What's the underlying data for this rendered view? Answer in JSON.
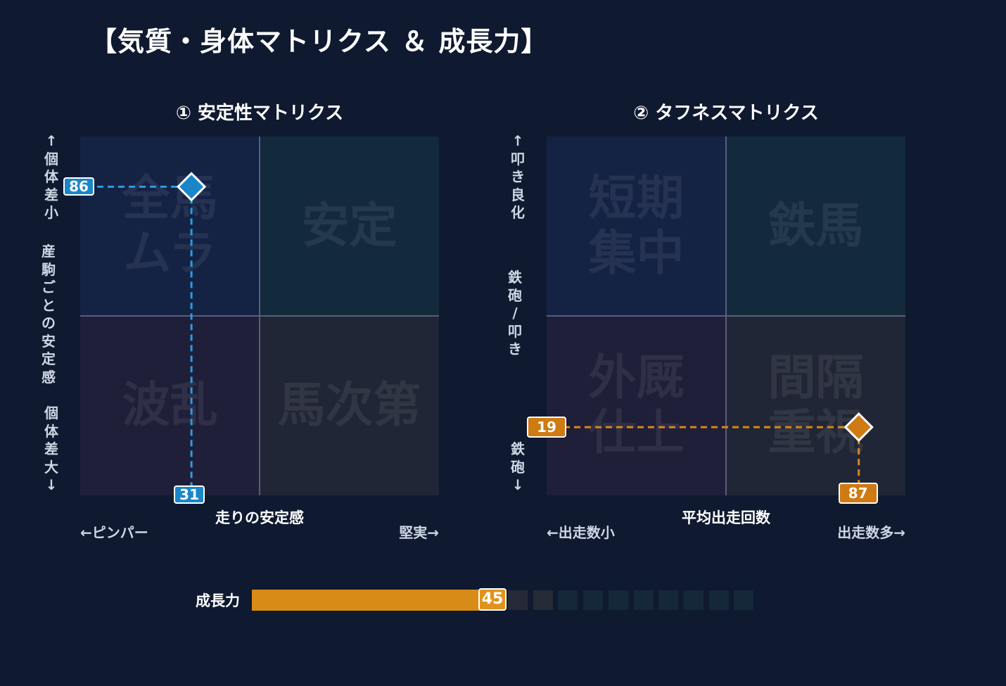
{
  "title": "【気質・身体マトリクス ＆ 成長力】",
  "colors": {
    "background": "#0f1930",
    "blue_marker": "#1a86c8",
    "orange_marker": "#cf7a12",
    "growth_fill": "#d88b16"
  },
  "chart_data": [
    {
      "type": "scatter",
      "title": "① 安定性マトリクス",
      "xlabel": "走りの安定感",
      "x_left_label": "←ピンパー",
      "x_right_label": "堅実→",
      "y_top_label": "↑個体差小",
      "y_center_label": "産駒ごとの安定感",
      "y_bottom_label": "個体差大↓",
      "xlim": [
        0,
        100
      ],
      "ylim": [
        0,
        100
      ],
      "quadrants": {
        "top_left": "全馬\nムラ",
        "top_right": "安定",
        "bottom_left": "波乱",
        "bottom_right": "馬次第"
      },
      "point": {
        "x": 31,
        "y": 86,
        "x_label": "31",
        "y_label": "86",
        "color": "#1a86c8"
      }
    },
    {
      "type": "scatter",
      "title": "② タフネスマトリクス",
      "xlabel": "平均出走回数",
      "x_left_label": "←出走数小",
      "x_right_label": "出走数多→",
      "y_top_label": "↑叩き良化",
      "y_center_label": "鉄砲/叩き",
      "y_bottom_label": "鉄砲↓",
      "xlim": [
        0,
        100
      ],
      "ylim": [
        0,
        100
      ],
      "quadrants": {
        "top_left": "短期\n集中",
        "top_right": "鉄馬",
        "bottom_left": "外厩\n仕上",
        "bottom_right": "間隔\n重視"
      },
      "point": {
        "x": 87,
        "y": 19,
        "x_label": "87",
        "y_label": "19",
        "color": "#cf7a12"
      }
    }
  ],
  "growth": {
    "label": "成長力",
    "value": 45,
    "value_label": "45",
    "max": 100
  }
}
